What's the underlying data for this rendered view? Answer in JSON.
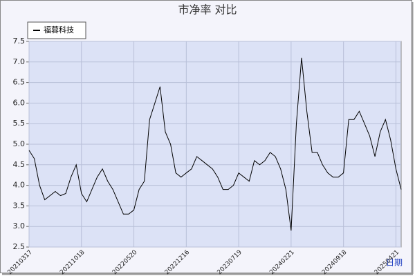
{
  "chart_data": {
    "type": "line",
    "title": "市净率 对比",
    "x_label": "日期",
    "categories": [
      "20210317",
      null,
      null,
      null,
      null,
      null,
      null,
      null,
      null,
      null,
      "20211018",
      null,
      null,
      null,
      null,
      null,
      null,
      null,
      null,
      null,
      "20220520",
      null,
      null,
      null,
      null,
      null,
      null,
      null,
      null,
      null,
      "20221216",
      null,
      null,
      null,
      null,
      null,
      null,
      null,
      null,
      null,
      "20230719",
      null,
      null,
      null,
      null,
      null,
      null,
      null,
      null,
      null,
      "20240221",
      null,
      null,
      null,
      null,
      null,
      null,
      null,
      null,
      null,
      "20240918",
      null,
      null,
      null,
      null,
      null,
      null,
      null,
      null,
      null,
      "20250421",
      null
    ],
    "series": [
      {
        "name": "福蓉科技",
        "color": "#000000",
        "values": [
          4.85,
          4.65,
          4.0,
          3.65,
          3.75,
          3.85,
          3.75,
          3.8,
          4.2,
          4.5,
          3.8,
          3.6,
          3.9,
          4.2,
          4.4,
          4.1,
          3.9,
          3.6,
          3.3,
          3.3,
          3.4,
          3.9,
          4.1,
          5.6,
          6.0,
          6.4,
          5.3,
          5.0,
          4.3,
          4.2,
          4.3,
          4.4,
          4.7,
          4.6,
          4.5,
          4.4,
          4.2,
          3.9,
          3.9,
          4.0,
          4.3,
          4.2,
          4.1,
          4.6,
          4.5,
          4.6,
          4.8,
          4.7,
          4.4,
          3.9,
          2.9,
          5.5,
          7.1,
          5.8,
          4.8,
          4.8,
          4.5,
          4.3,
          4.2,
          4.2,
          4.3,
          5.6,
          5.6,
          5.8,
          5.5,
          5.2,
          4.7,
          5.3,
          5.6,
          5.1,
          4.4,
          3.9
        ]
      }
    ],
    "ylim": [
      2.5,
      7.5
    ],
    "yticks": [
      2.5,
      {
        "value": 3,
        "label": "3.0"
      },
      3.5,
      {
        "value": 4,
        "label": "4.0"
      },
      4.5,
      {
        "value": 5,
        "label": "5.0"
      },
      5.5,
      {
        "value": 6,
        "label": "6.0"
      },
      6.5,
      {
        "value": 7,
        "label": "7.0"
      },
      7.5
    ],
    "grid": true,
    "legend": "top-left"
  }
}
